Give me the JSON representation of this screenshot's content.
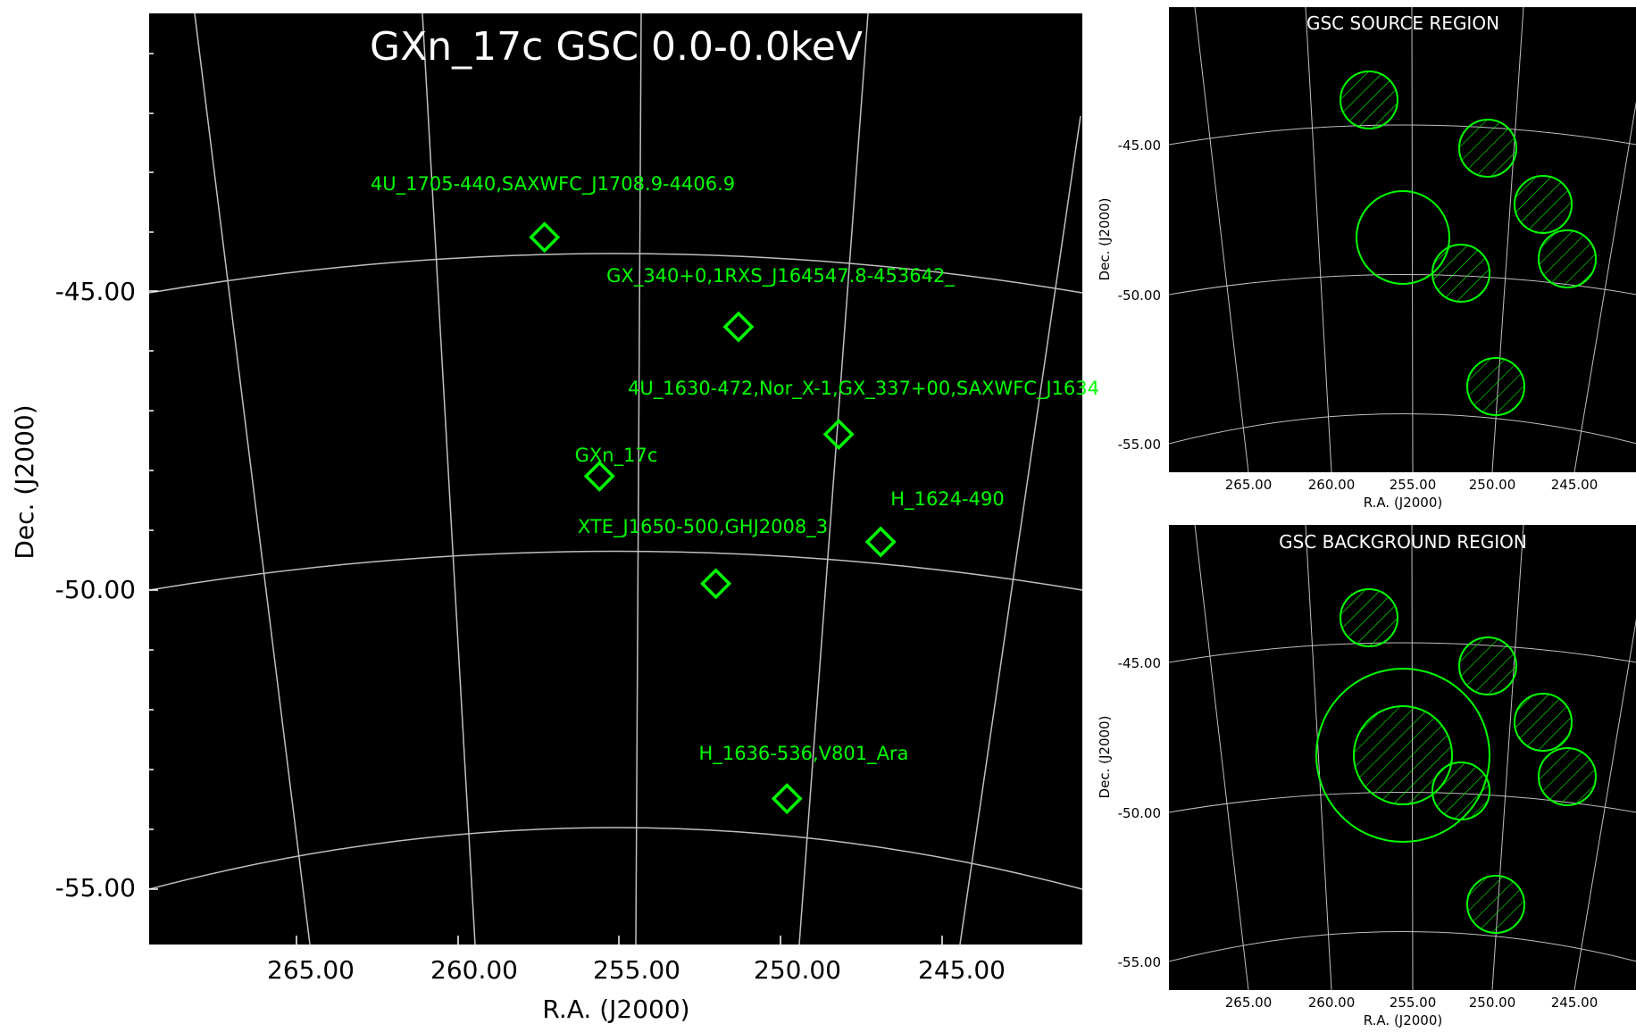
{
  "main": {
    "title": "GXn_17c GSC 0.0-0.0keV",
    "xlabel": "R.A. (J2000)",
    "ylabel": "Dec. (J2000)",
    "xticks": [
      "265.00",
      "260.00",
      "255.00",
      "250.00",
      "245.00"
    ],
    "yticks": [
      "-45.00",
      "-50.00",
      "-55.00"
    ],
    "sources": [
      {
        "label": "4U_1705-440,SAXWFC_J1708.9-4406.9",
        "ra": 257.3,
        "dec": -44.1
      },
      {
        "label": "GX_340+0,1RXS_J164547.8-453642_",
        "ra": 251.3,
        "dec": -45.6
      },
      {
        "label": "4U_1630-472,Nor_X-1,GX_337+00,SAXWFC_J1634",
        "ra": 248.2,
        "dec": -47.4
      },
      {
        "label": "GXn_17c",
        "ra": 255.6,
        "dec": -48.1
      },
      {
        "label": "H_1624-490",
        "ra": 246.9,
        "dec": -49.2
      },
      {
        "label": "XTE_J1650-500,GHJ2008_3",
        "ra": 252.0,
        "dec": -49.9
      },
      {
        "label": "H_1636-536,V801_Ara",
        "ra": 249.8,
        "dec": -53.5
      }
    ]
  },
  "source_panel": {
    "title": "GSC SOURCE REGION",
    "xlabel": "R.A. (J2000)",
    "ylabel": "Dec. (J2000)",
    "xticks": [
      "265.00",
      "260.00",
      "255.00",
      "250.00",
      "245.00"
    ],
    "yticks": [
      "-45.00",
      "-50.00",
      "-55.00"
    ]
  },
  "background_panel": {
    "title": "GSC BACKGROUND REGION",
    "xlabel": "R.A. (J2000)",
    "ylabel": "Dec. (J2000)",
    "xticks": [
      "265.00",
      "260.00",
      "255.00",
      "250.00",
      "245.00"
    ],
    "yticks": [
      "-45.00",
      "-50.00",
      "-55.00"
    ]
  },
  "colors": {
    "background": "#000000",
    "marker": "#00ff00",
    "grid": "#bfbfbf"
  }
}
